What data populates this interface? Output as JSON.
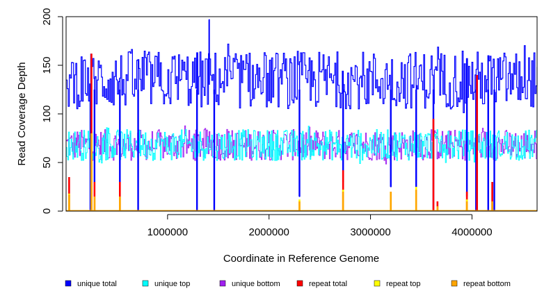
{
  "chart_data": {
    "type": "line",
    "xlabel": "Coordinate in Reference Genome",
    "ylabel": "Read Coverage Depth",
    "xlim": [
      1,
      4641652
    ],
    "ylim": [
      0,
      200
    ],
    "x_ticks": [
      1000000,
      2000000,
      3000000,
      4000000
    ],
    "x_tick_labels": [
      "1000000",
      "2000000",
      "3000000",
      "4000000"
    ],
    "y_ticks": [
      0,
      50,
      100,
      150,
      200
    ],
    "y_tick_labels": [
      "0",
      "50",
      "100",
      "150",
      "200"
    ],
    "grid": false,
    "legend_position": "bottom",
    "series": [
      {
        "name": "unique total",
        "color": "#0000ff",
        "level_mean": 135,
        "level_range": [
          100,
          175
        ],
        "peak": {
          "x": 1410000,
          "y": 197
        },
        "dips": [
          {
            "x": 240000,
            "y": 0
          },
          {
            "x": 280000,
            "y": 30
          },
          {
            "x": 530000,
            "y": 30
          },
          {
            "x": 710000,
            "y": 0
          },
          {
            "x": 1290000,
            "y": 0
          },
          {
            "x": 1460000,
            "y": 0
          },
          {
            "x": 2300000,
            "y": 15
          },
          {
            "x": 2730000,
            "y": 30
          },
          {
            "x": 3200000,
            "y": 25
          },
          {
            "x": 3450000,
            "y": 25
          },
          {
            "x": 3620000,
            "y": 0
          },
          {
            "x": 3950000,
            "y": 15
          },
          {
            "x": 4040000,
            "y": 0
          },
          {
            "x": 4160000,
            "y": 0
          },
          {
            "x": 4220000,
            "y": 0
          }
        ]
      },
      {
        "name": "unique top",
        "color": "#00ffff",
        "level_mean": 68,
        "level_range": [
          48,
          88
        ]
      },
      {
        "name": "unique bottom",
        "color": "#a020f0",
        "level_mean": 68,
        "level_range": [
          48,
          88
        ]
      },
      {
        "name": "repeat total",
        "color": "#ff0000",
        "spikes": [
          {
            "x": 30000,
            "y": 35
          },
          {
            "x": 250000,
            "y": 162
          },
          {
            "x": 280000,
            "y": 30
          },
          {
            "x": 530000,
            "y": 30
          },
          {
            "x": 2730000,
            "y": 42
          },
          {
            "x": 3620000,
            "y": 95
          },
          {
            "x": 3660000,
            "y": 10
          },
          {
            "x": 3950000,
            "y": 20
          },
          {
            "x": 4050000,
            "y": 140
          },
          {
            "x": 4200000,
            "y": 30
          }
        ]
      },
      {
        "name": "repeat top",
        "color": "#ffff00",
        "spikes": [
          {
            "x": 30000,
            "y": 18
          },
          {
            "x": 250000,
            "y": 80
          },
          {
            "x": 280000,
            "y": 15
          },
          {
            "x": 530000,
            "y": 15
          },
          {
            "x": 2300000,
            "y": 12
          },
          {
            "x": 2730000,
            "y": 22
          },
          {
            "x": 3200000,
            "y": 20
          },
          {
            "x": 3450000,
            "y": 25
          },
          {
            "x": 3660000,
            "y": 5
          },
          {
            "x": 3950000,
            "y": 12
          }
        ]
      },
      {
        "name": "repeat bottom",
        "color": "#ffa500",
        "spikes": [
          {
            "x": 30000,
            "y": 17
          },
          {
            "x": 250000,
            "y": 80
          },
          {
            "x": 280000,
            "y": 15
          },
          {
            "x": 530000,
            "y": 15
          },
          {
            "x": 2300000,
            "y": 10
          },
          {
            "x": 2730000,
            "y": 20
          },
          {
            "x": 3200000,
            "y": 20
          },
          {
            "x": 3450000,
            "y": 22
          },
          {
            "x": 3660000,
            "y": 5
          },
          {
            "x": 3950000,
            "y": 10
          },
          {
            "x": 4200000,
            "y": 10
          }
        ]
      }
    ]
  }
}
